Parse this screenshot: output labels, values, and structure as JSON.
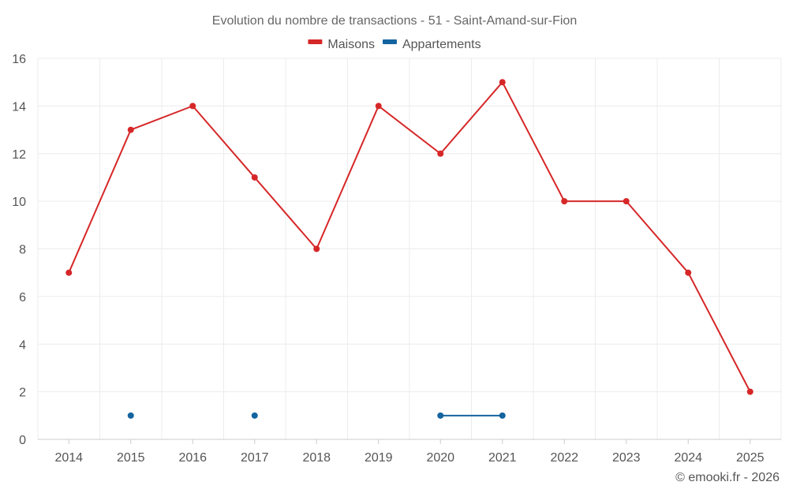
{
  "chart_data": {
    "type": "line",
    "title": "Evolution du nombre de transactions - 51 - Saint-Amand-sur-Fion",
    "categories": [
      "2014",
      "2015",
      "2016",
      "2017",
      "2018",
      "2019",
      "2020",
      "2021",
      "2022",
      "2023",
      "2024",
      "2025"
    ],
    "series": [
      {
        "name": "Maisons",
        "color": "#d62728",
        "values": [
          7,
          13,
          14,
          11,
          8,
          14,
          12,
          15,
          10,
          10,
          7,
          2
        ]
      },
      {
        "name": "Appartements",
        "color": "#1464a0",
        "values": [
          null,
          1,
          null,
          1,
          null,
          null,
          1,
          1,
          null,
          null,
          null,
          null
        ]
      }
    ],
    "ylim": [
      0,
      16
    ],
    "yticks": [
      0,
      2,
      4,
      6,
      8,
      10,
      12,
      14,
      16
    ],
    "grid": true,
    "legend": "top-center",
    "credit": "© emooki.fr - 2026"
  }
}
